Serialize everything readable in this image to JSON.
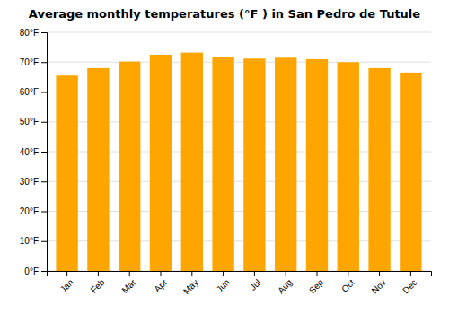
{
  "chart_data": {
    "type": "bar",
    "title": "Average monthly temperatures (°F ) in San Pedro de Tutule",
    "categories": [
      "Jan",
      "Feb",
      "Mar",
      "Apr",
      "May",
      "Jun",
      "Jul",
      "Aug",
      "Sep",
      "Oct",
      "Nov",
      "Dec"
    ],
    "values": [
      65.5,
      68.0,
      70.2,
      72.5,
      73.2,
      71.8,
      71.2,
      71.5,
      71.0,
      70.0,
      68.0,
      66.5
    ],
    "color": "#FFA500",
    "ylim": [
      0,
      80
    ],
    "yticks": [
      {
        "value": 0,
        "label": "0°F"
      },
      {
        "value": 10,
        "label": "10°F"
      },
      {
        "value": 20,
        "label": "20°F"
      },
      {
        "value": 30,
        "label": "30°F"
      },
      {
        "value": 40,
        "label": "40°F"
      },
      {
        "value": 50,
        "label": "50°F"
      },
      {
        "value": 60,
        "label": "60°F"
      },
      {
        "value": 70,
        "label": "70°F"
      },
      {
        "value": 80,
        "label": "80°F"
      }
    ],
    "grid": true
  }
}
